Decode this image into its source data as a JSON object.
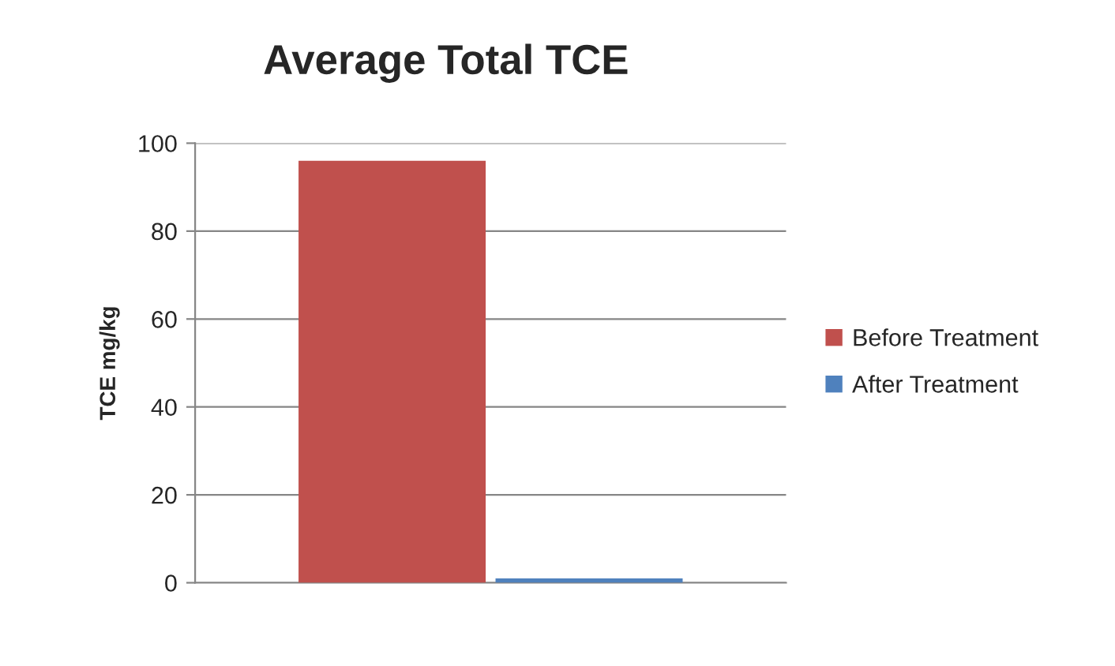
{
  "chart_data": {
    "type": "bar",
    "title": "Average Total TCE",
    "ylabel": "TCE mg/kg",
    "categories": [
      null
    ],
    "series": [
      {
        "name": "Before Treatment",
        "color": "#c0504d",
        "values": [
          96
        ]
      },
      {
        "name": "After Treatment",
        "color": "#4f81bd",
        "values": [
          1
        ]
      }
    ],
    "ylim": [
      0,
      100
    ],
    "yticks": [
      0,
      20,
      40,
      60,
      80,
      100
    ],
    "grid": "y",
    "legend": "right"
  }
}
